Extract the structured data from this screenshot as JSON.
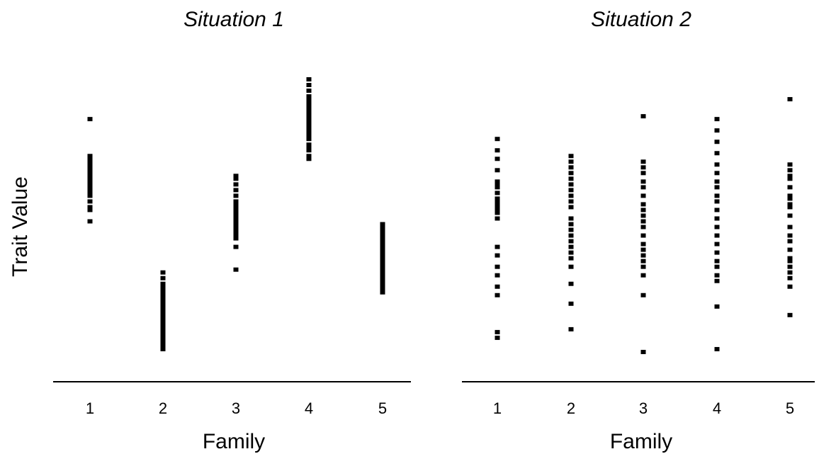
{
  "chart_data": [
    {
      "type": "scatter",
      "title": "Situation 1",
      "xlabel": "Family",
      "ylabel": "Trait Value",
      "ylim": [
        0,
        100
      ],
      "categories": [
        "1",
        "2",
        "3",
        "4",
        "5"
      ],
      "grid": false,
      "points": [
        {
          "family": "1",
          "values": [
            86,
            73,
            72,
            71,
            70,
            69,
            68,
            67,
            66,
            65,
            64,
            63,
            62,
            61,
            60,
            59,
            57,
            55,
            54,
            50
          ]
        },
        {
          "family": "2",
          "values": [
            32,
            30,
            28,
            27,
            26,
            25,
            24,
            23,
            22,
            21,
            20,
            19,
            18,
            17,
            16,
            15,
            14,
            13,
            12,
            11,
            10,
            9,
            8,
            7,
            6,
            5
          ]
        },
        {
          "family": "3",
          "values": [
            66,
            65,
            63,
            61,
            59,
            57,
            56,
            55,
            54,
            53,
            52,
            51,
            50,
            49,
            48,
            47,
            46,
            45,
            44,
            41,
            33
          ]
        },
        {
          "family": "4",
          "values": [
            100,
            98,
            96,
            94,
            93,
            92,
            91,
            90,
            89,
            88,
            87,
            86,
            85,
            84,
            83,
            82,
            81,
            80,
            79,
            77,
            76,
            75,
            73,
            72
          ]
        },
        {
          "family": "5",
          "values": [
            49,
            48,
            47,
            46,
            45,
            44,
            43,
            42,
            41,
            40,
            39,
            38,
            37,
            36,
            35,
            34,
            33,
            32,
            31,
            30,
            29,
            28,
            27,
            26,
            25
          ]
        }
      ]
    },
    {
      "type": "scatter",
      "title": "Situation 2",
      "xlabel": "Family",
      "ylabel": "",
      "ylim": [
        0,
        100
      ],
      "categories": [
        "1",
        "2",
        "3",
        "4",
        "5"
      ],
      "grid": false,
      "points": [
        {
          "family": "1",
          "values": [
            79,
            75,
            72,
            68,
            64,
            63,
            62,
            60,
            58,
            57,
            56,
            55,
            54,
            53,
            51,
            41,
            38,
            34,
            31,
            27,
            24,
            11,
            9
          ]
        },
        {
          "family": "2",
          "values": [
            73,
            71,
            69,
            67,
            65,
            63,
            61,
            59,
            57,
            55,
            51,
            49,
            47,
            45,
            43,
            41,
            39,
            37,
            34,
            28,
            21,
            12
          ]
        },
        {
          "family": "3",
          "values": [
            87,
            71,
            69,
            67,
            64,
            62,
            59,
            56,
            54,
            52,
            50,
            48,
            45,
            42,
            40,
            38,
            36,
            34,
            31,
            24,
            4
          ]
        },
        {
          "family": "4",
          "values": [
            86,
            82,
            78,
            74,
            70,
            67,
            64,
            62,
            59,
            57,
            54,
            51,
            48,
            45,
            42,
            39,
            36,
            34,
            31,
            29,
            20,
            5
          ]
        },
        {
          "family": "5",
          "values": [
            93,
            70,
            68,
            66,
            65,
            62,
            59,
            58,
            56,
            55,
            52,
            48,
            45,
            43,
            40,
            37,
            36,
            34,
            32,
            30,
            27,
            17
          ]
        }
      ]
    }
  ]
}
